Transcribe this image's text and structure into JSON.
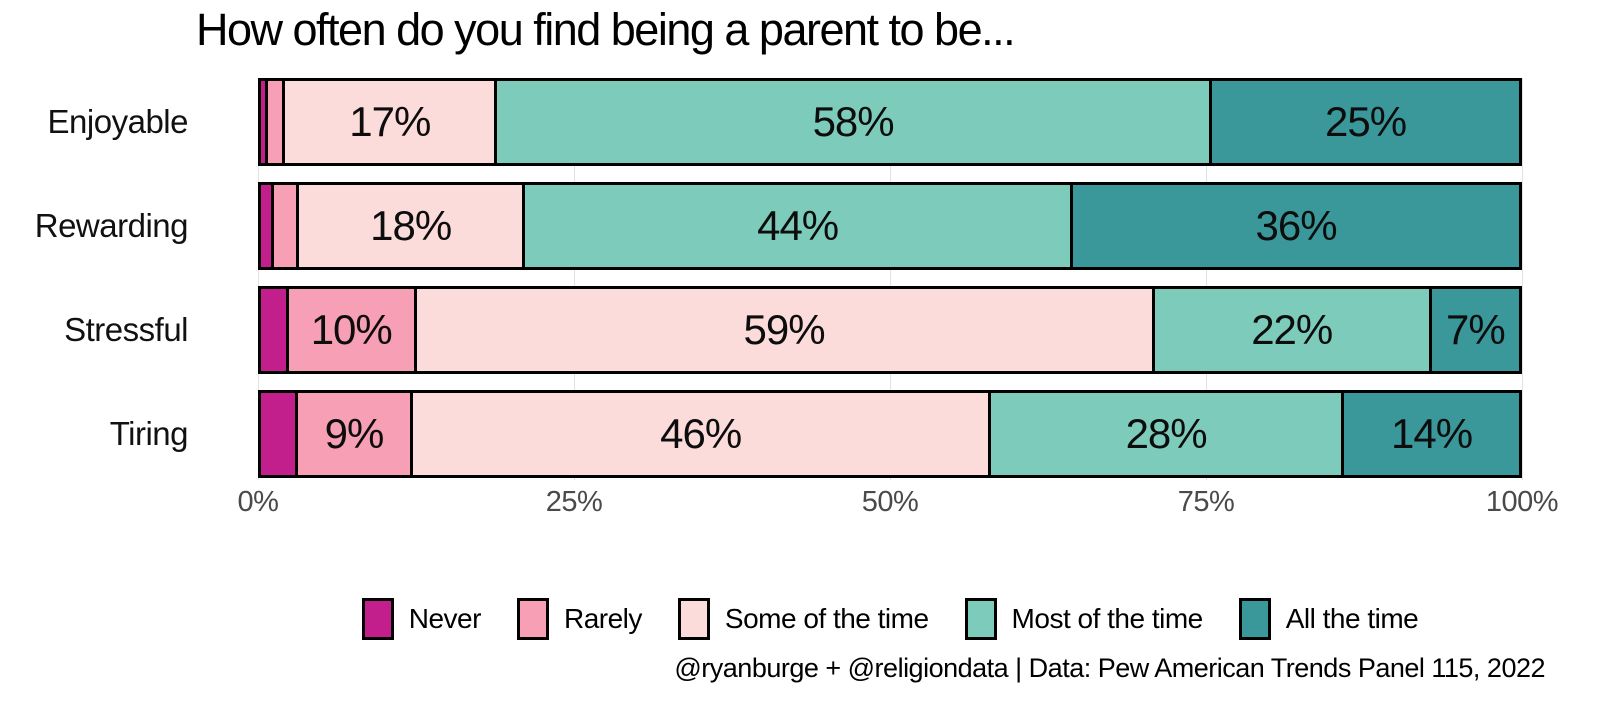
{
  "title": "How often do you find being a parent to be...",
  "footer": "@ryanburge + @religiondata | Data: Pew American Trends Panel 115, 2022",
  "colors": {
    "never": "#c21e8c",
    "rarely": "#f79fb4",
    "some": "#fbdcda",
    "most": "#7dccbb",
    "all": "#3a989a",
    "border": "#000000",
    "gridline": "#e2e2e2",
    "axis_text": "#4a4a4a"
  },
  "chart_data": {
    "type": "bar",
    "orientation": "horizontal-stacked",
    "title": "How often do you find being a parent to be...",
    "xlabel": "",
    "ylabel": "",
    "xlim": [
      0,
      100
    ],
    "grid": "faint vertical lines at major ticks",
    "legend_position": "bottom-center",
    "axis_ticks": [
      "0%",
      "25%",
      "50%",
      "75%",
      "100%"
    ],
    "tick_positions": [
      0,
      25,
      50,
      75,
      100
    ],
    "categories": [
      "Enjoyable",
      "Rewarding",
      "Stressful",
      "Tiring"
    ],
    "series_names": [
      "Never",
      "Rarely",
      "Some of the time",
      "Most of the time",
      "All the time"
    ],
    "legend": [
      {
        "label": "Never",
        "key": "never",
        "color": "#c21e8c"
      },
      {
        "label": "Rarely",
        "key": "rarely",
        "color": "#f79fb4"
      },
      {
        "label": "Some of the time",
        "key": "some",
        "color": "#fbdcda"
      },
      {
        "label": "Most of the time",
        "key": "most",
        "color": "#7dccbb"
      },
      {
        "label": "All the time",
        "key": "all",
        "color": "#3a989a"
      }
    ],
    "rows": [
      {
        "category": "Enjoyable",
        "segments": [
          {
            "series": "Never",
            "key": "never",
            "value": 0.3,
            "label": ""
          },
          {
            "series": "Rarely",
            "key": "rarely",
            "value": 1.2,
            "label": ""
          },
          {
            "series": "Some of the time",
            "key": "some",
            "value": 17,
            "label": "17%"
          },
          {
            "series": "Most of the time",
            "key": "most",
            "value": 58,
            "label": "58%"
          },
          {
            "series": "All the time",
            "key": "all",
            "value": 25,
            "label": "25%"
          }
        ]
      },
      {
        "category": "Rewarding",
        "segments": [
          {
            "series": "Never",
            "key": "never",
            "value": 0.8,
            "label": ""
          },
          {
            "series": "Rarely",
            "key": "rarely",
            "value": 1.8,
            "label": ""
          },
          {
            "series": "Some of the time",
            "key": "some",
            "value": 18,
            "label": "18%"
          },
          {
            "series": "Most of the time",
            "key": "most",
            "value": 44,
            "label": "44%"
          },
          {
            "series": "All the time",
            "key": "all",
            "value": 36,
            "label": "36%"
          }
        ]
      },
      {
        "category": "Stressful",
        "segments": [
          {
            "series": "Never",
            "key": "never",
            "value": 2,
            "label": ""
          },
          {
            "series": "Rarely",
            "key": "rarely",
            "value": 10,
            "label": "10%"
          },
          {
            "series": "Some of the time",
            "key": "some",
            "value": 59,
            "label": "59%"
          },
          {
            "series": "Most of the time",
            "key": "most",
            "value": 22,
            "label": "22%"
          },
          {
            "series": "All the time",
            "key": "all",
            "value": 7,
            "label": "7%"
          }
        ]
      },
      {
        "category": "Tiring",
        "segments": [
          {
            "series": "Never",
            "key": "never",
            "value": 2.7,
            "label": ""
          },
          {
            "series": "Rarely",
            "key": "rarely",
            "value": 9,
            "label": "9%"
          },
          {
            "series": "Some of the time",
            "key": "some",
            "value": 46,
            "label": "46%"
          },
          {
            "series": "Most of the time",
            "key": "most",
            "value": 28,
            "label": "28%"
          },
          {
            "series": "All the time",
            "key": "all",
            "value": 14,
            "label": "14%"
          }
        ]
      }
    ]
  }
}
